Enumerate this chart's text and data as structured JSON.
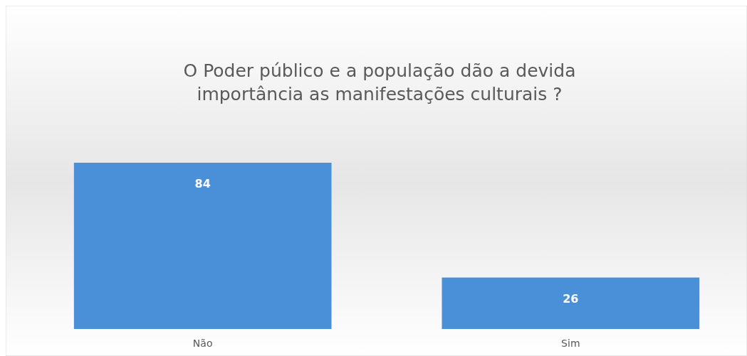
{
  "chart_data": {
    "type": "bar",
    "title": "O Poder público e a população dão a devida importância as manifestações culturais ?",
    "categories": [
      "Não",
      "Sim"
    ],
    "values": [
      84,
      26
    ],
    "color": "#4a90d9",
    "data_labels": true
  }
}
